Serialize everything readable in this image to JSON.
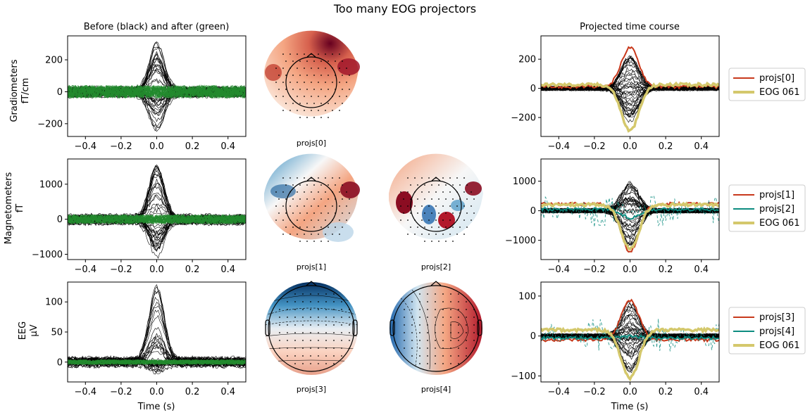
{
  "figure": {
    "title": "Too many EOG projectors",
    "col_titles": {
      "left": "Before (black) and after (green)",
      "right": "Projected time course"
    },
    "xlabel": "Time (s)"
  },
  "colors": {
    "before": "#000000",
    "after": "#238a2e",
    "proj_red": "#c8391c",
    "proj_teal": "#0d8c80",
    "eog": "#d4c86c"
  },
  "chart_data": [
    {
      "type": "line",
      "id": "grad-left",
      "ylabel": [
        "Gradiometers",
        "fT/cm"
      ],
      "xlim": [
        -0.5,
        0.5
      ],
      "ylim": [
        -280,
        350
      ],
      "x_ticks": [
        -0.4,
        -0.2,
        0.0,
        0.2,
        0.4
      ],
      "y_ticks": [
        -200,
        0,
        200
      ],
      "before_peak": 330,
      "before_trough": -240,
      "after_band": 40
    },
    {
      "type": "line",
      "id": "mag-left",
      "ylabel": [
        "Magnetometers",
        "fT"
      ],
      "xlim": [
        -0.5,
        0.5
      ],
      "ylim": [
        -1150,
        1720
      ],
      "x_ticks": [
        -0.4,
        -0.2,
        0.0,
        0.2,
        0.4
      ],
      "y_ticks": [
        -1000,
        0,
        1000
      ],
      "before_peak": 1620,
      "before_trough": -1000,
      "after_band": 130
    },
    {
      "type": "line",
      "id": "eeg-left",
      "ylabel": [
        "EEG",
        "µV"
      ],
      "xlim": [
        -0.5,
        0.5
      ],
      "ylim": [
        -33,
        133
      ],
      "x_ticks": [
        -0.4,
        -0.2,
        0.0,
        0.2,
        0.4
      ],
      "y_ticks": [
        0,
        50,
        100
      ],
      "before_peak": 125,
      "before_trough": -15,
      "after_band": 4
    },
    {
      "type": "line",
      "id": "grad-right",
      "xlim": [
        -0.5,
        0.5
      ],
      "ylim": [
        -330,
        360
      ],
      "x_ticks": [
        -0.4,
        -0.2,
        0.0,
        0.2,
        0.4
      ],
      "y_ticks": [
        -200,
        0,
        200
      ],
      "series": [
        {
          "name": "projs[0]",
          "color": "proj_red",
          "peak_t": 0.0,
          "peak": 280,
          "base": 10
        },
        {
          "name": "EOG 061",
          "color": "eog",
          "peak_t": 0.0,
          "peak": -290,
          "base": 25
        }
      ]
    },
    {
      "type": "line",
      "id": "mag-right",
      "xlim": [
        -0.5,
        0.5
      ],
      "ylim": [
        -1650,
        1750
      ],
      "x_ticks": [
        -0.4,
        -0.2,
        0.0,
        0.2,
        0.4
      ],
      "y_ticks": [
        -1000,
        0,
        1000
      ],
      "series": [
        {
          "name": "projs[1]",
          "color": "proj_red",
          "peak_t": 0.0,
          "peak": -1380,
          "base": 230
        },
        {
          "name": "projs[2]",
          "color": "proj_teal",
          "peak_t": 0.0,
          "peak": -250,
          "base": 50
        },
        {
          "name": "EOG 061",
          "color": "eog",
          "peak_t": 0.0,
          "peak": -1300,
          "base": 200
        }
      ]
    },
    {
      "type": "line",
      "id": "eeg-right",
      "xlim": [
        -0.5,
        0.5
      ],
      "ylim": [
        -115,
        135
      ],
      "x_ticks": [
        -0.4,
        -0.2,
        0.0,
        0.2,
        0.4
      ],
      "y_ticks": [
        -100,
        0,
        100
      ],
      "series": [
        {
          "name": "projs[3]",
          "color": "proj_red",
          "peak_t": 0.0,
          "peak": 90,
          "base": -10
        },
        {
          "name": "projs[4]",
          "color": "proj_teal",
          "peak_t": 0.0,
          "peak": 0,
          "base": -5
        },
        {
          "name": "EOG 061",
          "color": "eog",
          "peak_t": 0.0,
          "peak": -105,
          "base": 15
        }
      ]
    }
  ],
  "topomaps": [
    {
      "id": "t0",
      "label": "projs[0]"
    },
    {
      "id": "t1",
      "label": "projs[1]"
    },
    {
      "id": "t2",
      "label": "projs[2]"
    },
    {
      "id": "t3",
      "label": "projs[3]"
    },
    {
      "id": "t4",
      "label": "projs[4]"
    }
  ],
  "legends": [
    {
      "id": "leg0",
      "items": [
        "projs[0]",
        "EOG 061"
      ]
    },
    {
      "id": "leg1",
      "items": [
        "projs[1]",
        "projs[2]",
        "EOG 061"
      ]
    },
    {
      "id": "leg2",
      "items": [
        "projs[3]",
        "projs[4]",
        "EOG 061"
      ]
    }
  ]
}
